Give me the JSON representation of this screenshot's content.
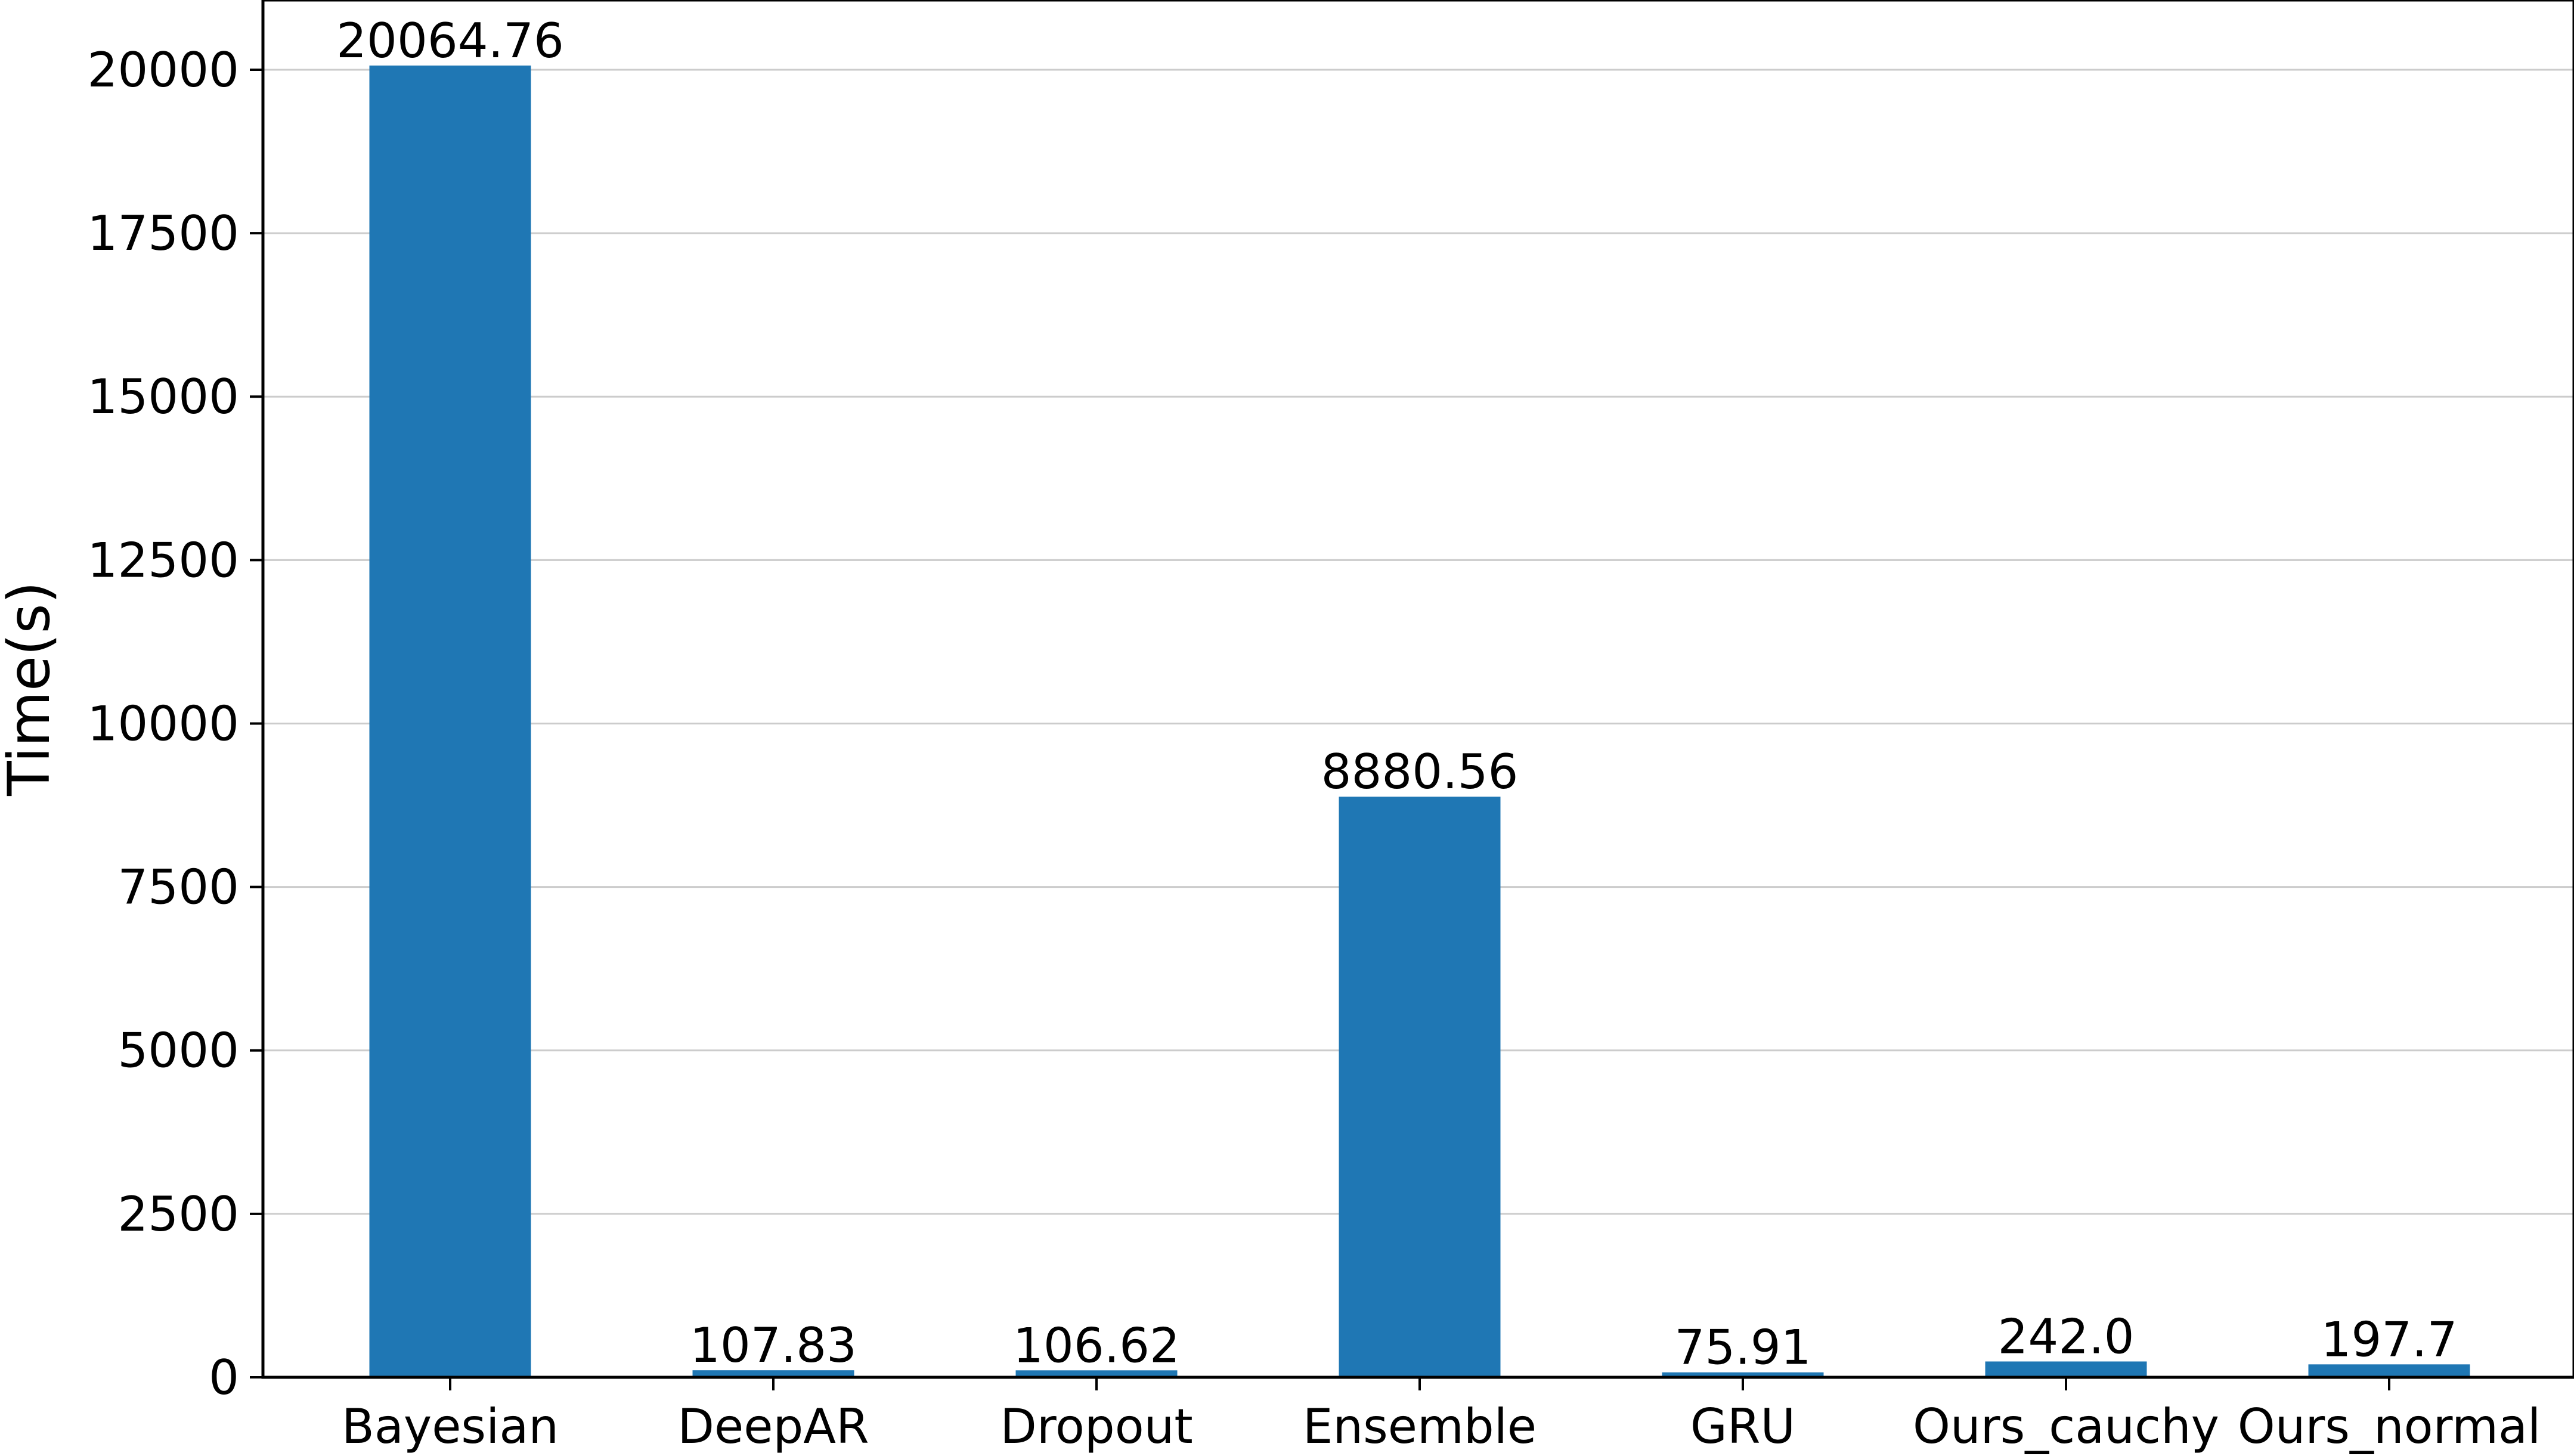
{
  "chart_data": {
    "type": "bar",
    "categories": [
      "Bayesian",
      "DeepAR",
      "Dropout",
      "Ensemble",
      "GRU",
      "Ours_cauchy",
      "Ours_normal"
    ],
    "values": [
      20064.76,
      107.83,
      106.62,
      8880.56,
      75.91,
      242.0,
      197.7
    ],
    "value_labels": [
      "20064.76",
      "107.83",
      "106.62",
      "8880.56",
      "75.91",
      "242.0",
      "197.7"
    ],
    "title": "",
    "xlabel": "",
    "ylabel": "Time(s)",
    "ylim": [
      0,
      21067
    ],
    "yticks": [
      0,
      2500,
      5000,
      7500,
      10000,
      12500,
      15000,
      17500,
      20000
    ],
    "grid": "horizontal",
    "legend": "none",
    "bar_color": "#1f77b4",
    "grid_color": "#cccccc"
  }
}
